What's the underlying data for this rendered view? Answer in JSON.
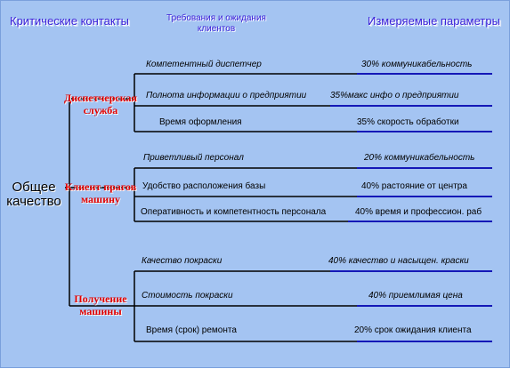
{
  "headers": {
    "left": "Критические контакты",
    "middle": [
      "Требования и ожидания",
      "клиентов"
    ],
    "right": "Измеряемые параметры"
  },
  "root": [
    "Общее",
    "качество"
  ],
  "groups": [
    {
      "category": [
        "Диспетчерская",
        "служба"
      ],
      "rows": [
        {
          "requirement": "Компетентный диспетчер",
          "parameter": "30% коммуникабельность",
          "italic": true
        },
        {
          "requirement": "Полнота информации о предприятии",
          "parameter": "35%макс инфо о предприятии",
          "italic": true
        },
        {
          "requirement": "Время оформления",
          "parameter": "35% скорость обработки",
          "italic": false
        }
      ]
    },
    {
      "category": [
        "Клиент прагов",
        "машину"
      ],
      "rows": [
        {
          "requirement": "Приветливый персонал",
          "parameter": "20% коммуникабельность",
          "italic": true
        },
        {
          "requirement": "Удобство расположения базы",
          "parameter": "40% растояние от центра",
          "italic": false
        },
        {
          "requirement": "Оперативность и компетентность персонала",
          "parameter": "40% время и профессион. раб",
          "italic": false
        }
      ]
    },
    {
      "category": [
        "Получение",
        "машины"
      ],
      "rows": [
        {
          "requirement": "Качество покраски",
          "parameter": "40% качество и насыщен. краски",
          "italic": true
        },
        {
          "requirement": "Стоимость покраски",
          "parameter": "40% приемлимая цена",
          "italic": true
        },
        {
          "requirement": "Время (срок) ремонта",
          "parameter": "20% срок ожидания клиента",
          "italic": false
        }
      ]
    }
  ]
}
